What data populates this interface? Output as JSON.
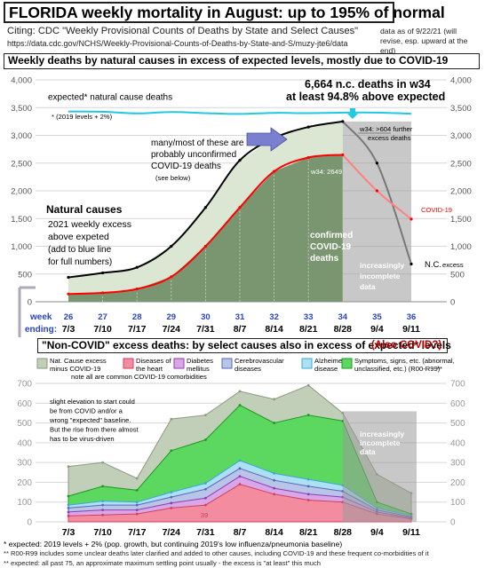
{
  "header": {
    "title": "FLORIDA weekly mortality in August: up to 195% of normal",
    "citation": "Citing: CDC \"Weekly Provisional Counts of Deaths by State and Select Causes\"",
    "url": "https://data.cdc.gov/NCHS/Weekly-Provisional-Counts-of-Deaths-by-State-and-S/muzy-jte6/data",
    "as_of_line1": "data as of 9/22/21 (will",
    "as_of_line2": "revise, esp. upward at the end)"
  },
  "top_chart": {
    "subtitle": "Weekly deaths by natural causes in excess of expected levels, mostly due to COVID-19",
    "expected_label": "expected* natural cause deaths",
    "expected_note": "* (2019 levels + 2%)",
    "headline_1": "6,664 n.c. deaths in w34",
    "headline_2": "at least 94.8% above expected",
    "w34_further_1": "w34: >604 further",
    "w34_further_2": "excess deaths",
    "unconfirmed_1": "many/most of these are",
    "unconfirmed_2": "probably unconfirmed",
    "unconfirmed_3": "COVID-19 deaths",
    "see_below": "(see below)",
    "w34_value": "w34: 2649",
    "natural_causes": "Natural causes",
    "excess_line": "2021 weekly excess",
    "excess_above": "above expeted",
    "add_blue_1": "(add to blue line",
    "add_blue_2": "for full numbers)",
    "confirmed_1": "confirmed",
    "confirmed_2": "COVID-19",
    "confirmed_3": "deaths",
    "incomplete_1": "increasingly",
    "incomplete_2": "incomplete",
    "incomplete_3": "data",
    "covid_label": "COVID-19",
    "nc_label": "N.C.",
    "nc_suffix": "excess",
    "week_label": "week",
    "ending_label": "ending:",
    "y_ticks": [
      "4,000",
      "3,500",
      "3,000",
      "2,500",
      "2,000",
      "1,500",
      "1,000",
      "500",
      "0"
    ],
    "y_ticks_right": [
      "4,000",
      "3,500",
      "3,000",
      "2,500",
      "2,000",
      "1,500",
      "1,000",
      "500",
      "0"
    ],
    "week_numbers": [
      "26",
      "27",
      "28",
      "29",
      "30",
      "31",
      "32",
      "33",
      "34",
      "35",
      "36"
    ],
    "week_dates": [
      "7/3",
      "7/10",
      "7/17",
      "7/24",
      "7/31",
      "8/7",
      "8/14",
      "8/21",
      "8/28",
      "9/4",
      "9/11"
    ]
  },
  "bottom_chart": {
    "section_title": "\"Non-COVID\" excess deaths: by select causes also in excess of expected* levels",
    "also_covid": "(Also COVID?)",
    "comorbid_note": "note all are common COVID-19 comorbidities",
    "elevation_1": "slight elevation to start could",
    "elevation_2": "be from COVID and/or a",
    "elevation_3": "wrong \"expected\" baseline.",
    "elevation_4": "But the rise from there almost",
    "elevation_5": "has to be virus-driven",
    "incomplete_1": "increasingly",
    "incomplete_2": "incomplete",
    "incomplete_3": "data",
    "heart_value": "39",
    "y_ticks": [
      "700",
      "600",
      "500",
      "400",
      "300",
      "200",
      "100",
      "0"
    ],
    "y_ticks_right": [
      "700",
      "600",
      "500",
      "400",
      "300",
      "200",
      "100",
      "0"
    ],
    "x_dates": [
      "7/3",
      "7/10",
      "7/17",
      "7/24",
      "7/31",
      "8/7",
      "8/14",
      "8/21",
      "8/28",
      "9/4",
      "9/11"
    ],
    "legend": [
      {
        "l1": "Nat. Cause excess",
        "l2": "minus COVID-19",
        "color": "#c2cfb8",
        "stroke": "#8a9a80"
      },
      {
        "l1": "Diseases of",
        "l2": "the heart",
        "color": "#f48ca0",
        "stroke": "#d04060"
      },
      {
        "l1": "Diabetes",
        "l2": "mellitus",
        "color": "#d9a6e8",
        "stroke": "#8e3fb0"
      },
      {
        "l1": "Cerebrovascular",
        "l2": "diseases",
        "color": "#b8c4e8",
        "stroke": "#5868b8"
      },
      {
        "l1": "Alzheimer",
        "l2": "disease",
        "color": "#aee0f4",
        "stroke": "#3aa8d8"
      },
      {
        "l1": "Symptoms, signs, etc. (abnormal,",
        "l2": "unclassified, etc.) (R00-R99)",
        "color": "#5cd860",
        "stroke": "#1a9a20"
      }
    ],
    "legend_suffix": "**"
  },
  "footnotes": {
    "f1": "* expected: 2019 levels + 2% (pop. growth, but continuing 2019's low influenza/pneumonia baseline)",
    "f2": "** R00-R99 includes some unclear deaths later clarified and added to other causes, including COVID-19 and these frequent co-morbidities of it",
    "f3": "** expected: all past 75, an approximate maximum settling point usually - the excess is \"at least\" this much"
  },
  "chart_data": [
    {
      "type": "area",
      "title": "Weekly deaths by natural causes in excess of expected levels, mostly due to COVID-19",
      "x": [
        "7/3",
        "7/10",
        "7/17",
        "7/24",
        "7/31",
        "8/7",
        "8/14",
        "8/21",
        "8/28",
        "9/4",
        "9/11"
      ],
      "ylim": [
        0,
        4000
      ],
      "grid": true,
      "series": [
        {
          "name": "expected* natural cause deaths",
          "color": "#20c8e0",
          "values": [
            3430,
            3425,
            3395,
            3420,
            3400,
            3385,
            3405,
            3400,
            3410,
            3410,
            3390
          ]
        },
        {
          "name": "N.C. excess",
          "color": "#000000",
          "values": [
            440,
            520,
            620,
            1000,
            1700,
            2550,
            2950,
            3150,
            3250,
            2500,
            680
          ]
        },
        {
          "name": "COVID-19",
          "color": "#ff0000",
          "values": [
            140,
            160,
            230,
            450,
            1000,
            1700,
            2350,
            2600,
            2649,
            2000,
            1490
          ]
        }
      ]
    },
    {
      "type": "area",
      "title": "\"Non-COVID\" excess deaths: by select causes also in excess of expected* levels",
      "x": [
        "7/3",
        "7/10",
        "7/17",
        "7/24",
        "7/31",
        "8/7",
        "8/14",
        "8/21",
        "8/28",
        "9/4",
        "9/11"
      ],
      "ylim": [
        0,
        700
      ],
      "grid": true,
      "stacked": true,
      "series": [
        {
          "name": "Diseases of the heart",
          "values": [
            30,
            35,
            40,
            70,
            85,
            190,
            140,
            110,
            100,
            40,
            15
          ]
        },
        {
          "name": "Diabetes mellitus",
          "values": [
            20,
            25,
            20,
            25,
            35,
            40,
            30,
            30,
            25,
            10,
            5
          ]
        },
        {
          "name": "Cerebrovascular diseases",
          "values": [
            20,
            25,
            25,
            30,
            45,
            40,
            40,
            40,
            30,
            10,
            5
          ]
        },
        {
          "name": "Alzheimer disease",
          "values": [
            15,
            20,
            15,
            25,
            30,
            40,
            35,
            35,
            30,
            10,
            5
          ]
        },
        {
          "name": "Symptoms, signs, etc. (abnormal, unclassified, etc.) (R00-R99)",
          "values": [
            45,
            75,
            60,
            210,
            220,
            280,
            255,
            325,
            325,
            30,
            10
          ]
        },
        {
          "name": "Nat. Cause excess minus COVID-19",
          "values": [
            150,
            120,
            60,
            160,
            125,
            70,
            120,
            150,
            40,
            140,
            105
          ]
        }
      ]
    }
  ]
}
